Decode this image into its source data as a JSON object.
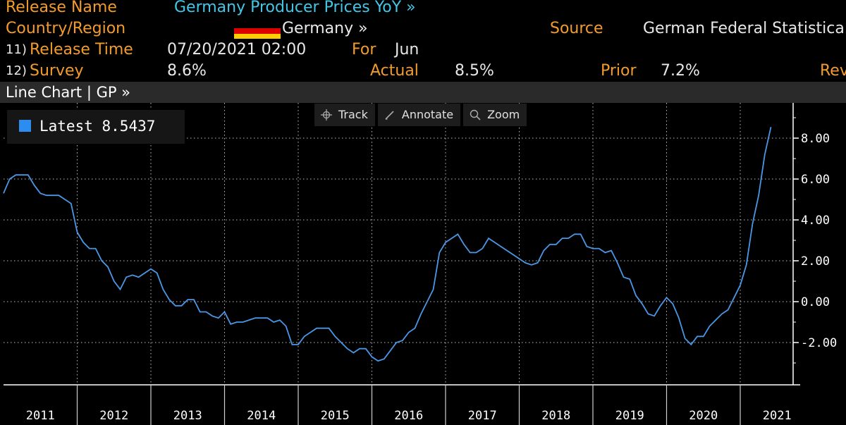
{
  "header": {
    "release_name_label": "Release Name",
    "release_name_value": "Germany Producer Prices YoY »",
    "country_label": "Country/Region",
    "country_value": "Germany »",
    "source_label": "Source",
    "source_value": "German Federal Statistica",
    "release_time_num": "11)",
    "release_time_label": "Release Time",
    "release_time_value": "07/20/2021 02:00",
    "for_label": "For",
    "for_value": "Jun",
    "survey_num": "12)",
    "survey_label": "Survey",
    "survey_value": "8.6%",
    "actual_label": "Actual",
    "actual_value": "8.5%",
    "prior_label": "Prior",
    "prior_value": "7.2%",
    "rev_label": "Rev"
  },
  "flag_colors": [
    "#000000",
    "#dd0000",
    "#ffce00"
  ],
  "chart_bar_label": "Line Chart | GP »",
  "toolbar": {
    "track": "Track",
    "track_icon": "crosshair-icon",
    "annotate": "Annotate",
    "annotate_icon": "pencil-icon",
    "zoom": "Zoom",
    "zoom_icon": "magnifier-icon"
  },
  "legend": {
    "label": "Latest",
    "value": "8.5437",
    "color": "#2d8cf0"
  },
  "colors": {
    "line": "#4a97e6",
    "grid": "#bfbfbf",
    "axis": "#ffffff"
  },
  "chart_data": {
    "type": "line",
    "x_start": "2011-01",
    "x_interval": "month",
    "years": [
      "2011",
      "2012",
      "2013",
      "2014",
      "2015",
      "2016",
      "2017",
      "2018",
      "2019",
      "2020",
      "2021"
    ],
    "ytick_labels": [
      "-2.00",
      "0.00",
      "2.00",
      "4.00",
      "6.00",
      "8.00"
    ],
    "yticks": [
      -2,
      0,
      2,
      4,
      6,
      8
    ],
    "ylim": [
      -4.2,
      9.5
    ],
    "grid": true,
    "series": [
      {
        "values": [
          5.3,
          6.0,
          6.2,
          6.2,
          6.2,
          5.7,
          5.3,
          5.2,
          5.2,
          5.2,
          5.0,
          4.8,
          3.4,
          2.9,
          2.6,
          2.6,
          2.0,
          1.7,
          1.0,
          0.6,
          1.2,
          1.3,
          1.2,
          1.4,
          1.6,
          1.4,
          0.6,
          0.1,
          -0.2,
          -0.2,
          0.1,
          0.1,
          -0.5,
          -0.5,
          -0.7,
          -0.8,
          -0.5,
          -1.1,
          -1.0,
          -1.0,
          -0.9,
          -0.8,
          -0.8,
          -0.8,
          -1.0,
          -0.9,
          -1.2,
          -2.1,
          -2.1,
          -1.7,
          -1.5,
          -1.3,
          -1.3,
          -1.3,
          -1.7,
          -2.0,
          -2.3,
          -2.5,
          -2.3,
          -2.3,
          -2.7,
          -2.9,
          -2.8,
          -2.4,
          -2.0,
          -1.9,
          -1.5,
          -1.3,
          -0.6,
          0.0,
          0.6,
          2.4,
          2.9,
          3.1,
          3.3,
          2.8,
          2.4,
          2.4,
          2.6,
          3.1,
          2.9,
          2.7,
          2.5,
          2.3,
          2.1,
          1.9,
          1.8,
          1.9,
          2.5,
          2.8,
          2.8,
          3.1,
          3.1,
          3.3,
          3.3,
          2.7,
          2.6,
          2.6,
          2.4,
          2.5,
          1.9,
          1.2,
          1.1,
          0.3,
          -0.1,
          -0.6,
          -0.7,
          -0.2,
          0.2,
          -0.1,
          -0.8,
          -1.8,
          -2.1,
          -1.7,
          -1.7,
          -1.2,
          -0.9,
          -0.6,
          -0.4,
          0.2,
          0.8,
          1.8,
          3.8,
          5.2,
          7.2,
          8.5437
        ]
      }
    ]
  }
}
